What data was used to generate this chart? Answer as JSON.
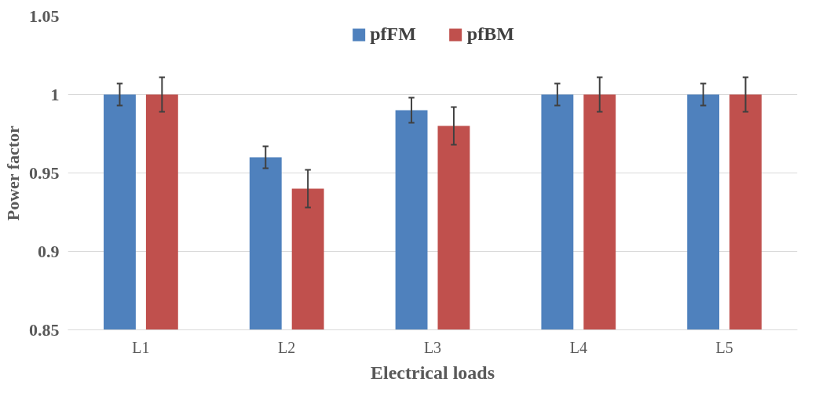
{
  "chart_data": {
    "type": "bar",
    "xlabel": "Electrical loads",
    "ylabel": "Power factor",
    "categories": [
      "L1",
      "L2",
      "L3",
      "L4",
      "L5"
    ],
    "series": [
      {
        "name": "pfFM",
        "color": "#4f81bd",
        "values": [
          1.0,
          0.96,
          0.99,
          1.0,
          1.0
        ],
        "errors": [
          0.007,
          0.007,
          0.008,
          0.007,
          0.007
        ]
      },
      {
        "name": "pfBM",
        "color": "#c0504d",
        "values": [
          1.0,
          0.94,
          0.98,
          1.0,
          1.0
        ],
        "errors": [
          0.011,
          0.012,
          0.012,
          0.011,
          0.011
        ]
      }
    ],
    "ylim": [
      0.85,
      1.05
    ],
    "yticks": [
      0.85,
      0.9,
      0.95,
      1,
      1.05
    ],
    "grid": "y",
    "legend": "top"
  }
}
